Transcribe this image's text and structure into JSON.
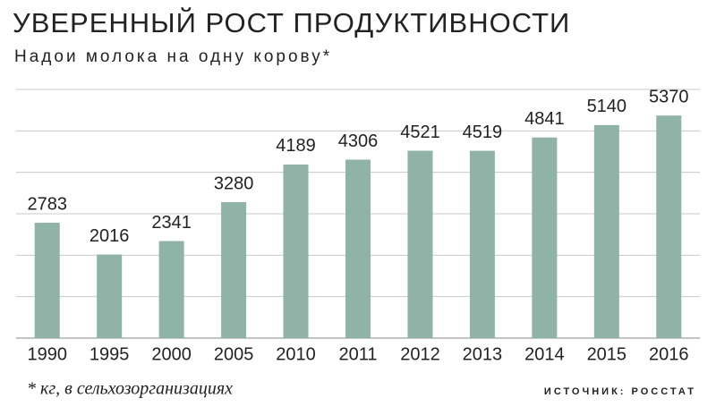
{
  "chart_data": {
    "type": "bar",
    "title": "УВЕРЕННЫЙ РОСТ ПРОДУКТИВНОСТИ",
    "subtitle": "Надои молока на одну корову*",
    "categories": [
      "1990",
      "1995",
      "2000",
      "2005",
      "2010",
      "2011",
      "2012",
      "2013",
      "2014",
      "2015",
      "2016"
    ],
    "values": [
      2783,
      2016,
      2341,
      3280,
      4189,
      4306,
      4521,
      4519,
      4841,
      5140,
      5370
    ],
    "color": "#8fb3a6",
    "ylim": [
      0,
      6000
    ],
    "yticks": [
      0,
      1000,
      2000,
      3000,
      4000,
      5000,
      6000
    ],
    "grid": true,
    "footnote": "* кг, в сельхозорганизациях",
    "source": "ИСТОЧНИК: РОССТАТ"
  }
}
